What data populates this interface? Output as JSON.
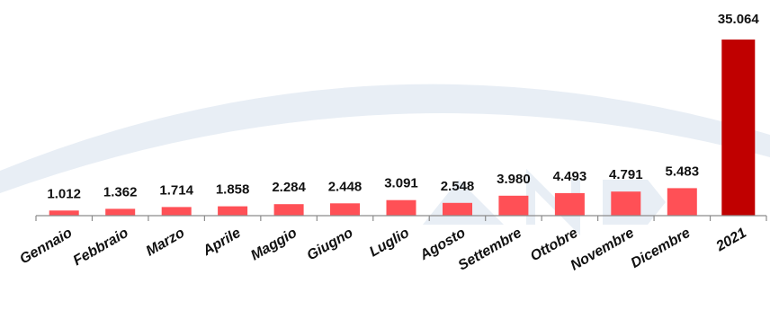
{
  "chart_data": {
    "type": "bar",
    "categories": [
      "Gennaio",
      "Febbraio",
      "Marzo",
      "Aprile",
      "Maggio",
      "Giugno",
      "Luglio",
      "Agosto",
      "Settembre",
      "Ottobre",
      "Novembre",
      "Dicembre",
      "2021"
    ],
    "values": [
      1012,
      1362,
      1714,
      1858,
      2284,
      2448,
      3091,
      2548,
      3980,
      4493,
      4791,
      5483,
      35064
    ],
    "value_labels": [
      "1.012",
      "1.362",
      "1.714",
      "1.858",
      "2.284",
      "2.448",
      "3.091",
      "2.548",
      "3.980",
      "4.493",
      "4.791",
      "5.483",
      "35.064"
    ],
    "title": "",
    "xlabel": "",
    "ylabel": "",
    "ylim": [
      0,
      35064
    ],
    "grid": false,
    "legend": "none",
    "colors": {
      "monthly_bar": "#ff5056",
      "total_bar": "#c00000",
      "axis": "#8c8c8c",
      "watermark": "#e8eef5"
    }
  }
}
